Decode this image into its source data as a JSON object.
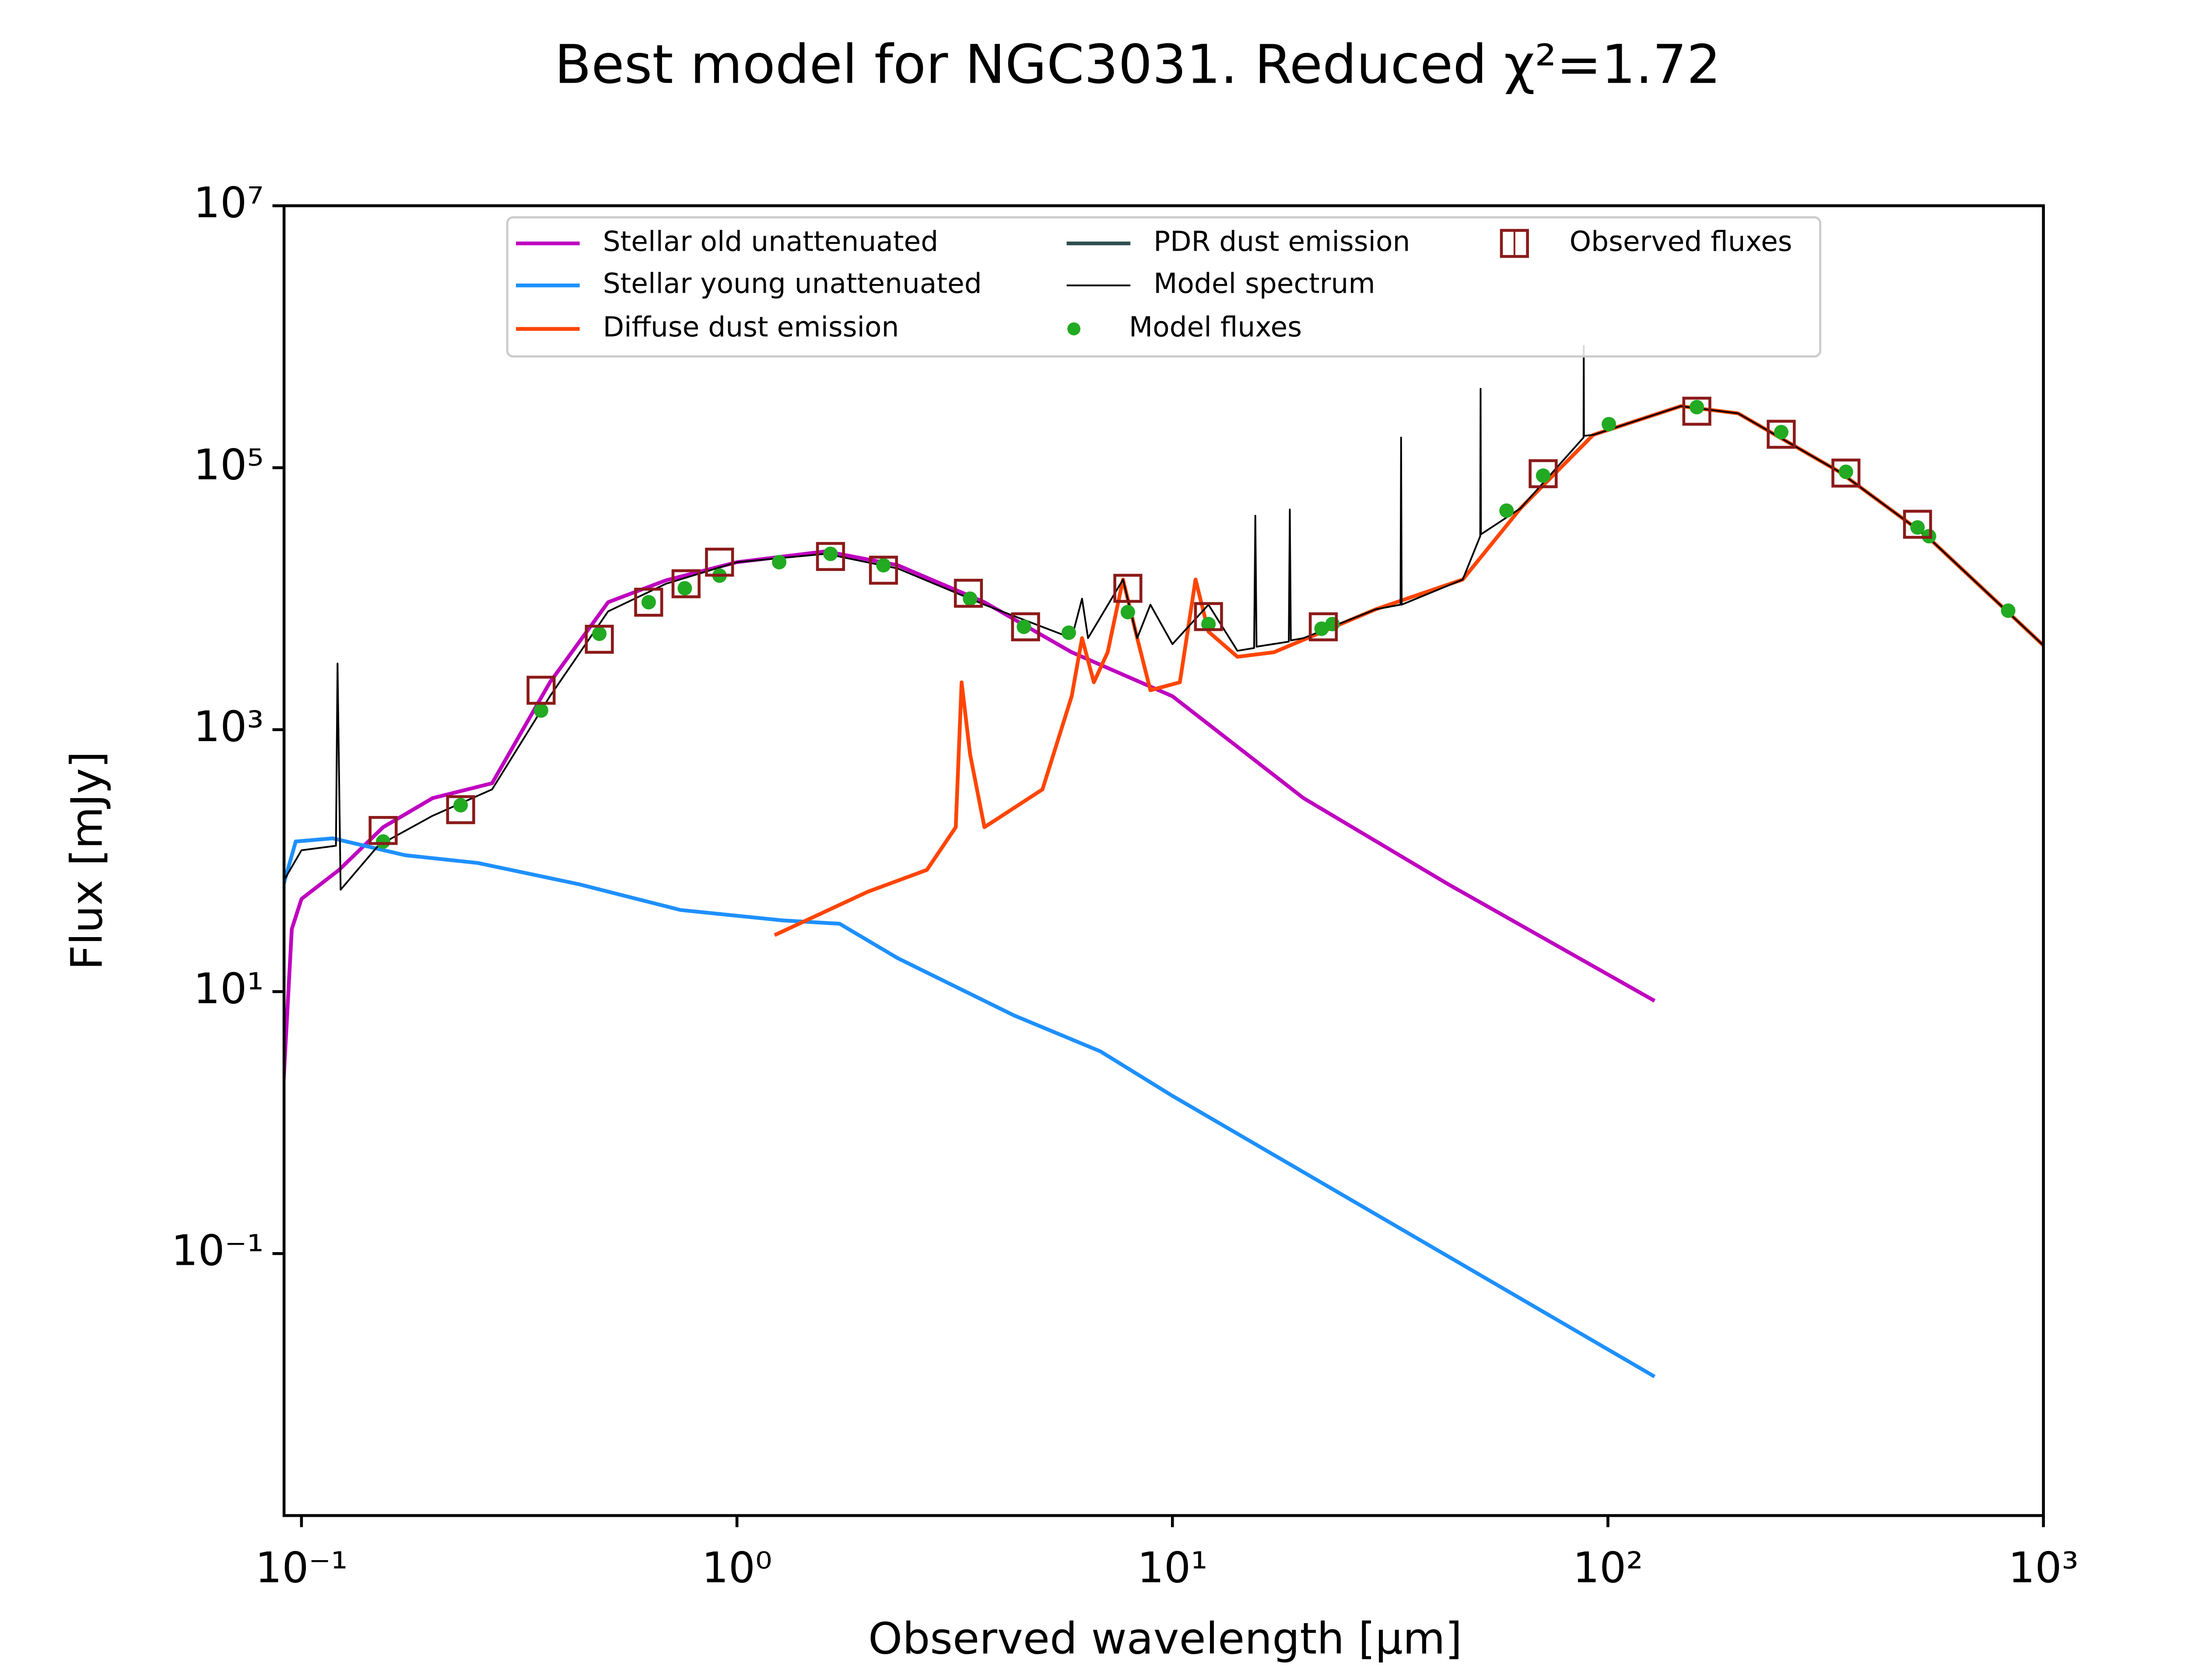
{
  "chart_data": {
    "type": "sed",
    "title": "Best model for NGC3031. Reduced χ²=1.72",
    "x_label": "Observed wavelength [μm]",
    "y_label": "Flux [mJy]",
    "x_log": true,
    "y_log": true,
    "xlim": [
      0.0912,
      1000
    ],
    "ylim": [
      0.001,
      10000000
    ],
    "xticks": [
      {
        "value": 0.1,
        "label": "10⁻¹"
      },
      {
        "value": 1,
        "label": "10⁰"
      },
      {
        "value": 10,
        "label": "10¹"
      },
      {
        "value": 100,
        "label": "10²"
      },
      {
        "value": 1000,
        "label": "10³"
      }
    ],
    "yticks": [
      {
        "value": 0.1,
        "label": "10⁻¹"
      },
      {
        "value": 10,
        "label": "10¹"
      },
      {
        "value": 1000,
        "label": "10³"
      },
      {
        "value": 100000,
        "label": "10⁵"
      },
      {
        "value": 10000000,
        "label": "10⁷"
      }
    ],
    "legend": "upper center",
    "series": [
      {
        "name": "Stellar old unattenuated",
        "kind": "line",
        "color": "#bf00bf",
        "x": [
          0.091,
          0.095,
          0.1,
          0.122,
          0.154,
          0.2,
          0.274,
          0.372,
          0.506,
          0.687,
          1.0,
          1.6,
          2.34,
          3.7,
          5.87,
          10,
          20,
          43,
          128
        ],
        "values": [
          2.1,
          30,
          51,
          85,
          180,
          300,
          390,
          2300,
          9400,
          13800,
          19000,
          23000,
          18000,
          9400,
          3900,
          1800,
          300,
          66,
          8.5
        ]
      },
      {
        "name": "Stellar young unattenuated",
        "kind": "line",
        "color": "#1e90ff",
        "x": [
          0.091,
          0.097,
          0.118,
          0.173,
          0.254,
          0.434,
          0.742,
          1.27,
          1.72,
          2.34,
          4.32,
          6.83,
          10,
          128
        ],
        "values": [
          66,
          140,
          148,
          110,
          96,
          66,
          42,
          35,
          33,
          18,
          6.6,
          3.5,
          1.6,
          0.0115
        ]
      },
      {
        "name": "Diffuse dust emission",
        "kind": "line",
        "color": "#ff4500",
        "x": [
          1.22,
          2.0,
          2.73,
          3.18,
          3.28,
          3.43,
          3.7,
          5.03,
          5.87,
          6.2,
          6.6,
          7.1,
          7.7,
          8.3,
          8.9,
          10.4,
          11.3,
          12.1,
          14.1,
          17.1,
          29.3,
          46.4,
          63,
          92.5,
          147,
          199,
          340,
          540,
          1000
        ],
        "values": [
          27,
          58,
          85,
          180,
          2300,
          650,
          180,
          350,
          1800,
          5000,
          2300,
          3900,
          14000,
          5000,
          2000,
          2300,
          14000,
          5600,
          3600,
          3900,
          8300,
          14000,
          49000,
          178000,
          295000,
          260000,
          93000,
          30000,
          4400
        ]
      },
      {
        "name": "PDR dust emission",
        "kind": "line",
        "color": "#2f4f4f",
        "x": [],
        "values": []
      },
      {
        "name": "Model spectrum",
        "kind": "thin-line",
        "color": "#000000",
        "x": [
          0.091,
          0.1,
          0.12,
          0.121,
          0.123,
          0.15,
          0.2,
          0.274,
          0.372,
          0.506,
          0.687,
          1,
          1.6,
          2.34,
          3.7,
          5.87,
          6.2,
          6.4,
          7.7,
          8.3,
          8.9,
          10,
          12.1,
          14.1,
          15.4,
          15.5,
          15.6,
          18.5,
          18.6,
          18.7,
          20,
          29.3,
          33.4,
          33.5,
          33.6,
          46.4,
          50.9,
          51,
          51.1,
          63,
          87.9,
          88,
          88.1,
          92.5,
          147,
          199,
          340,
          540,
          1000
        ],
        "values": [
          70,
          120,
          130,
          3200,
          60,
          130,
          220,
          350,
          1800,
          8000,
          13000,
          19000,
          22000,
          17000,
          9000,
          5000,
          10000,
          5000,
          14000,
          5000,
          9000,
          4500,
          9000,
          4000,
          4200,
          43000,
          4300,
          4700,
          48000,
          4800,
          5000,
          8300,
          9000,
          170000,
          9000,
          14000,
          30000,
          400000,
          31000,
          49000,
          170000,
          850000,
          175000,
          178000,
          295000,
          260000,
          93000,
          30000,
          4400
        ]
      },
      {
        "name": "Model fluxes",
        "kind": "dots",
        "color": "#22aa22",
        "x": [
          0.154,
          0.232,
          0.355,
          0.483,
          0.627,
          0.759,
          0.912,
          1.25,
          1.64,
          2.17,
          3.43,
          4.56,
          5.78,
          7.9,
          12.1,
          22.0,
          23.3,
          58.5,
          71,
          100.5,
          160,
          250,
          352,
          514,
          546,
          830
        ],
        "values": [
          140,
          265,
          1400,
          5400,
          9400,
          12000,
          15000,
          19000,
          22000,
          18000,
          10000,
          6100,
          5500,
          7900,
          6400,
          5900,
          6400,
          47000,
          87000,
          215000,
          290000,
          187000,
          93000,
          35000,
          30000,
          8100
        ]
      },
      {
        "name": "Observed fluxes",
        "kind": "squares",
        "color": "#8b1a1a",
        "x": [
          0.154,
          0.232,
          0.355,
          0.483,
          0.627,
          0.764,
          0.912,
          1.64,
          2.17,
          3.4,
          4.6,
          7.9,
          12.1,
          22.2,
          71,
          160,
          250,
          352,
          514
        ],
        "values": [
          170,
          245,
          2000,
          4900,
          9400,
          13000,
          19000,
          21000,
          16500,
          11000,
          6100,
          12000,
          7300,
          6100,
          90000,
          270000,
          180000,
          91000,
          37000
        ]
      }
    ]
  }
}
